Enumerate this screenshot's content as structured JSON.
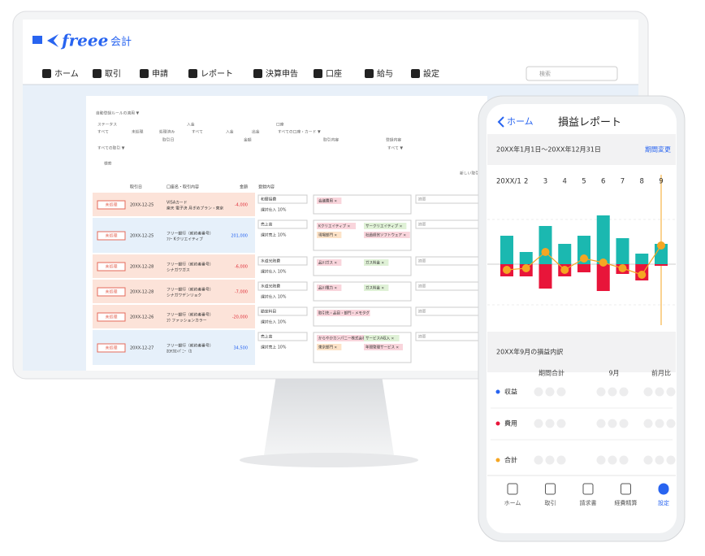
{
  "monitor": {
    "logo": "freee",
    "logo_sub": "会計",
    "nav": [
      "ホーム",
      "取引",
      "申請",
      "レポート",
      "決算申告",
      "口座",
      "給与",
      "設定"
    ],
    "search": "検索",
    "filters": [
      "自動登録ルールの適用 ▼",
      "ステータス",
      "入金",
      "口座",
      "すべて",
      "未処理",
      "処理済み",
      "すべて",
      "入金",
      "出金",
      "すべての口座・カード ▼",
      "取引日",
      "金額",
      "取引内容",
      "登録内容",
      "すべての取引 ▼",
      "すべて ▼",
      "検索",
      "新しい取引"
    ]
  },
  "table": {
    "headers": [
      "取引日",
      "口座名・取引内容",
      "金額",
      "登録内容"
    ],
    "rows": [
      {
        "status": "未処理",
        "date": "20XX-12-25",
        "desc": [
          "VISAカード",
          "楽天 電子決 月ぎめプラン・東京"
        ],
        "amount": "-4,000",
        "account": "和暦接費",
        "tax": "課対仕入 10%",
        "tags": [
          "会議費用 ×"
        ],
        "memo": "摘要"
      },
      {
        "status": "未処理",
        "date": "20XX-12-25",
        "desc": [
          "フリー銀行（前約者番号）",
          "ﾌﾘｰ Kクリエイティブ"
        ],
        "amount": "201,000",
        "account": "売上高",
        "tax": "課対売上 10%",
        "tags": [
          "Kクリエイティブ ×",
          "サークリエイティブ ×",
          "現場部門 ×",
          "社員経営ソフトウェア ×"
        ],
        "memo": "摘要"
      },
      {
        "status": "未処理",
        "date": "20XX-12-28",
        "desc": [
          "フリー銀行（前約者番号）",
          "シナガワガス"
        ],
        "amount": "-6,000",
        "account": "水道光熱費",
        "tax": "課対仕入 10%",
        "tags": [
          "品川ガス ×",
          "ガス料金 ×"
        ],
        "memo": "摘要"
      },
      {
        "status": "未処理",
        "date": "20XX-12-28",
        "desc": [
          "フリー銀行（前約者番号）",
          "シナガワデンリョク"
        ],
        "amount": "-7,000",
        "account": "水道光熱費",
        "tax": "課対仕入 10%",
        "tags": [
          "品川電力 ×",
          "ガス料金 ×"
        ],
        "memo": "摘要"
      },
      {
        "status": "未処理",
        "date": "20XX-12-26",
        "desc": [
          "フリー銀行（前約者番号）",
          "ｺｳ ファッションカラー"
        ],
        "amount": "-20,000",
        "account": "勘定科目",
        "tax": "課対仕入 10%",
        "tags": [
          "取引先・品目・部門・メモタグ"
        ],
        "memo": "摘要"
      },
      {
        "status": "未処理",
        "date": "20XX-12-27",
        "desc": [
          "フリー銀行（前約者番号）",
          "ｶﾛﾔｶｶﾝﾊﾟﾆｰ（ｶ"
        ],
        "amount": "34,500",
        "account": "売上高",
        "tax": "課対売上 10%",
        "tags": [
          "からやかカンパニー株式会社 ×",
          "サービスA収入 ×",
          "東京部門 ×",
          "年間管理サービス ×"
        ],
        "memo": "摘要"
      }
    ]
  },
  "phone": {
    "back": "ホーム",
    "title": "損益レポート",
    "period": "20XX年1月1日〜20XX年12月31日",
    "period_change": "期間変更",
    "breakdown_title": "20XX年9月の損益内訳",
    "columns": [
      "期間合計",
      "9月",
      "前月比"
    ],
    "tabs": [
      "ホーム",
      "取引",
      "請求書",
      "経費精算",
      "設定"
    ]
  },
  "chart_data": {
    "type": "bar",
    "categories": [
      "20XX/1",
      "2",
      "3",
      "4",
      "5",
      "6",
      "7",
      "8",
      "9"
    ],
    "series": [
      {
        "name": "収益",
        "color": "#1bb8b0",
        "values": [
          35,
          15,
          47,
          25,
          35,
          60,
          32,
          13,
          25
        ]
      },
      {
        "name": "費用",
        "color": "#e8153a",
        "values": [
          -15,
          -15,
          -30,
          -15,
          -10,
          -33,
          -12,
          -20,
          -2
        ]
      },
      {
        "name": "合計",
        "color": "#f5a623",
        "values": [
          -7,
          -5,
          15,
          -7,
          7,
          2,
          -5,
          -13,
          23
        ]
      }
    ],
    "ylim": [
      -60,
      80
    ]
  }
}
